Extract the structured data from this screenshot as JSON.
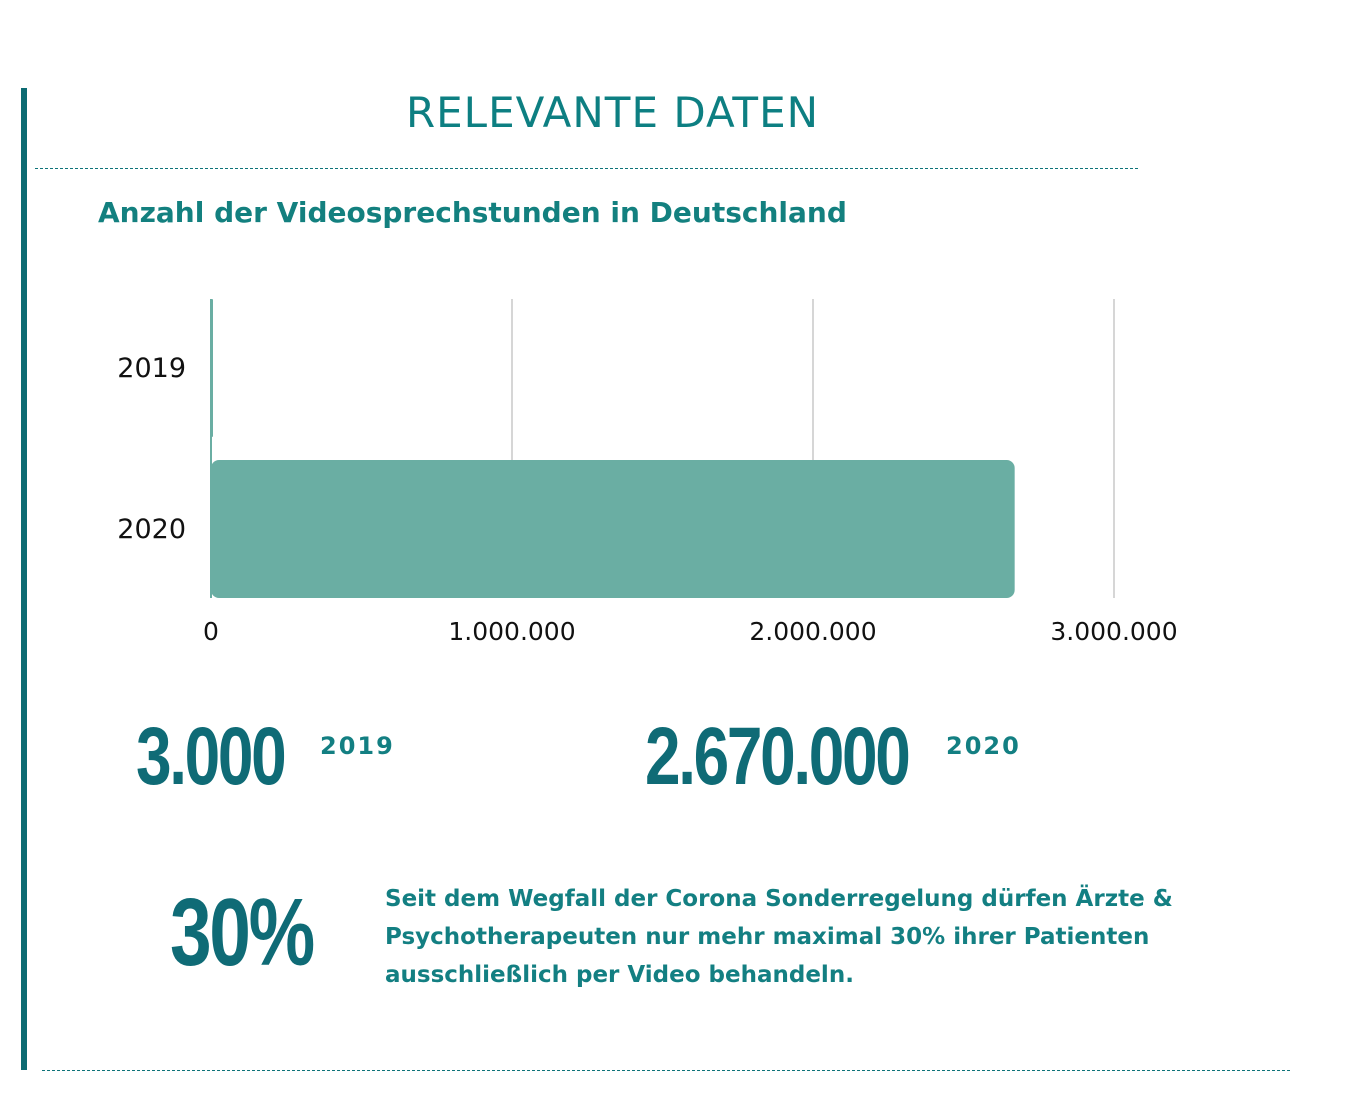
{
  "header": {
    "title": "RELEVANTE DATEN"
  },
  "chart_data": {
    "type": "bar",
    "orientation": "horizontal",
    "title": "Anzahl der Videosprechstunden in Deutschland",
    "categories": [
      "2019",
      "2020"
    ],
    "values": [
      3000,
      2670000
    ],
    "xlim": [
      0,
      3000000
    ],
    "xticks": [
      0,
      1000000,
      2000000,
      3000000
    ],
    "xtick_labels": [
      "0",
      "1.000.000",
      "2.000.000",
      "3.000.000"
    ],
    "xlabel": "",
    "ylabel": "",
    "grid": "vertical",
    "legend": "none",
    "bar_color": "#6aaea3",
    "grid_color": "#c8c8c8"
  },
  "stats": {
    "stat_2019": {
      "value": "3.000",
      "year": "2019"
    },
    "stat_2020": {
      "value": "2.670.000",
      "year": "2020"
    },
    "stat_percent": {
      "value": "30%"
    }
  },
  "note": {
    "text": "Seit dem Wegfall der Corona Sonderregelung dürfen Ärzte & Psychotherapeuten nur mehr maximal 30% ihrer Patienten ausschließlich per Video behandeln."
  },
  "colors": {
    "accent": "#0d7f82",
    "dark_teal": "#0f6b76",
    "bar": "#6aaea3"
  }
}
